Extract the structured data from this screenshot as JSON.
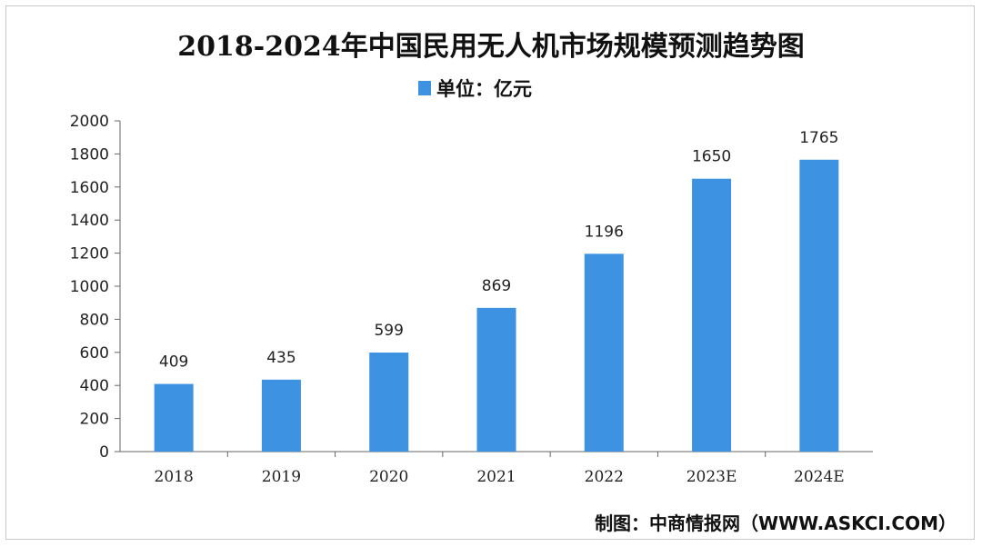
{
  "chart_data": {
    "type": "bar",
    "title": "2018-2024年中国民用无人机市场规模预测趋势图",
    "legend": "单位：亿元",
    "categories": [
      "2018",
      "2019",
      "2020",
      "2021",
      "2022",
      "2023E",
      "2024E"
    ],
    "values": [
      409,
      435,
      599,
      869,
      1196,
      1650,
      1765
    ],
    "data_labels": [
      "409",
      "435",
      "599",
      "869",
      "1196",
      "1650",
      "1765"
    ],
    "yticks": [
      "0",
      "200",
      "400",
      "600",
      "800",
      "1000",
      "1200",
      "1400",
      "1600",
      "1800",
      "2000"
    ],
    "ylim": [
      0,
      2000
    ],
    "bar_color": "#3d92e2",
    "grid": false,
    "legend_position": "top-center"
  },
  "source": "制图：中商情报网（WWW.ASKCI.COM）"
}
